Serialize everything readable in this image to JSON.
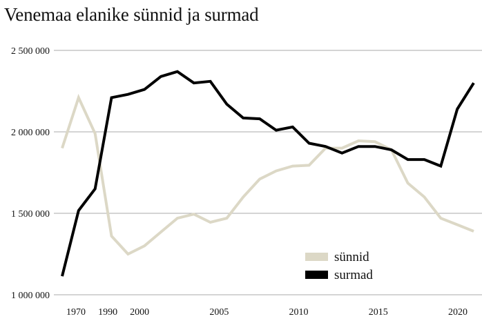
{
  "chart_data": {
    "type": "line",
    "title": "Venemaa elanike sünnid ja surmad",
    "xlabel": "",
    "ylabel": "",
    "x": [
      1970,
      1980,
      1990,
      1995,
      2000,
      2001,
      2002,
      2003,
      2004,
      2005,
      2006,
      2007,
      2008,
      2009,
      2010,
      2011,
      2012,
      2013,
      2014,
      2015,
      2016,
      2017,
      2018,
      2019,
      2020,
      2021
    ],
    "x_tick_labels": [
      "1970",
      "1990",
      "2000",
      "2005",
      "2010",
      "2015",
      "2020"
    ],
    "y_ticks": [
      1000000,
      1500000,
      2000000,
      2500000
    ],
    "y_tick_labels": [
      "1 000 000",
      "1 500 000",
      "2 000 000",
      "2 500 000"
    ],
    "ylim": [
      1000000,
      2500000
    ],
    "grid": "horizontal",
    "legend_position": "bottom-right",
    "series": [
      {
        "name": "sünnid",
        "color": "#dcd8c6",
        "values": [
          1900000,
          2210000,
          1990000,
          1360000,
          1250000,
          1300000,
          1385000,
          1470000,
          1495000,
          1445000,
          1470000,
          1600000,
          1710000,
          1760000,
          1790000,
          1795000,
          1900000,
          1900000,
          1945000,
          1940000,
          1890000,
          1685000,
          1600000,
          1470000,
          1430000,
          1390000
        ]
      },
      {
        "name": "surmad",
        "color": "#000000",
        "values": [
          1114000,
          1517000,
          1650000,
          2210000,
          2230000,
          2260000,
          2340000,
          2370000,
          2300000,
          2310000,
          2170000,
          2085000,
          2080000,
          2010000,
          2030000,
          1930000,
          1910000,
          1870000,
          1910000,
          1910000,
          1890000,
          1830000,
          1830000,
          1790000,
          2140000,
          2300000
        ]
      }
    ]
  }
}
